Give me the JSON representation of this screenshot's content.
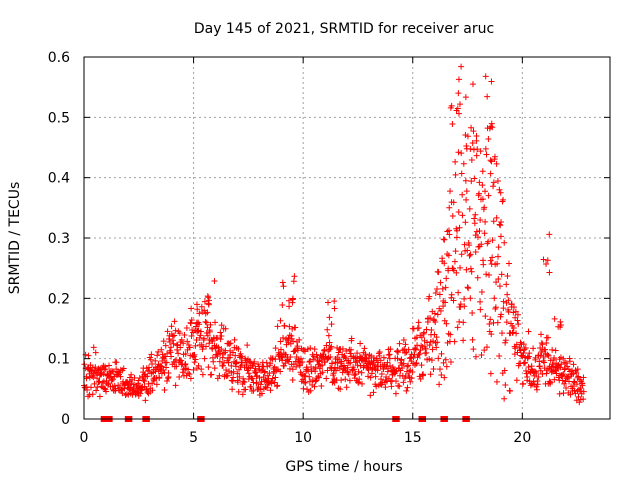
{
  "chart_data": {
    "type": "scatter",
    "title": "Day 145 of 2021, SRMTID for receiver aruc",
    "xlabel": "GPS time / hours",
    "ylabel": "SRMTID / TECUs",
    "xlim": [
      0,
      24
    ],
    "ylim": [
      0,
      0.6
    ],
    "grid": true,
    "x_ticks": [
      0,
      5,
      10,
      15,
      20
    ],
    "x_tick_labels": [
      "0",
      "5",
      "10",
      "15",
      "20"
    ],
    "y_ticks": [
      0,
      0.1,
      0.2,
      0.3,
      0.4,
      0.5,
      0.6
    ],
    "y_tick_labels": [
      "0",
      "0.1",
      "0.2",
      "0.3",
      "0.4",
      "0.5",
      "0.6"
    ],
    "series": [
      {
        "name": "SRMTID",
        "color": "#ff0000",
        "marker": "plus",
        "x_range": [
          0.0,
          22.8
        ],
        "trend": [
          [
            0.0,
            0.07
          ],
          [
            0.5,
            0.08
          ],
          [
            1.0,
            0.06
          ],
          [
            1.5,
            0.07
          ],
          [
            2.0,
            0.05
          ],
          [
            2.5,
            0.05
          ],
          [
            3.0,
            0.07
          ],
          [
            3.5,
            0.09
          ],
          [
            4.0,
            0.11
          ],
          [
            4.5,
            0.1
          ],
          [
            5.0,
            0.11
          ],
          [
            5.5,
            0.14
          ],
          [
            6.0,
            0.12
          ],
          [
            6.5,
            0.1
          ],
          [
            7.0,
            0.09
          ],
          [
            7.5,
            0.08
          ],
          [
            8.0,
            0.07
          ],
          [
            8.5,
            0.07
          ],
          [
            9.0,
            0.12
          ],
          [
            9.5,
            0.12
          ],
          [
            10.0,
            0.08
          ],
          [
            10.5,
            0.08
          ],
          [
            11.0,
            0.1
          ],
          [
            11.5,
            0.09
          ],
          [
            12.0,
            0.09
          ],
          [
            12.5,
            0.09
          ],
          [
            13.0,
            0.08
          ],
          [
            13.5,
            0.08
          ],
          [
            14.0,
            0.08
          ],
          [
            14.5,
            0.09
          ],
          [
            15.0,
            0.1
          ],
          [
            15.5,
            0.12
          ],
          [
            16.0,
            0.15
          ],
          [
            16.5,
            0.2
          ],
          [
            17.0,
            0.25
          ],
          [
            17.5,
            0.3
          ],
          [
            18.0,
            0.32
          ],
          [
            18.5,
            0.28
          ],
          [
            19.0,
            0.22
          ],
          [
            19.5,
            0.16
          ],
          [
            20.0,
            0.1
          ],
          [
            20.5,
            0.09
          ],
          [
            21.0,
            0.1
          ],
          [
            21.5,
            0.08
          ],
          [
            22.0,
            0.07
          ],
          [
            22.5,
            0.06
          ],
          [
            22.8,
            0.05
          ]
        ],
        "peaks": [
          [
            5.0,
            0.2
          ],
          [
            5.8,
            0.245
          ],
          [
            9.2,
            0.235
          ],
          [
            9.6,
            0.245
          ],
          [
            11.3,
            0.2
          ],
          [
            16.5,
            0.38
          ],
          [
            16.9,
            0.52
          ],
          [
            17.2,
            0.59
          ],
          [
            17.5,
            0.55
          ],
          [
            17.8,
            0.5
          ],
          [
            18.2,
            0.4
          ],
          [
            18.5,
            0.6
          ],
          [
            18.6,
            0.52
          ],
          [
            19.0,
            0.4
          ],
          [
            21.1,
            0.31
          ],
          [
            21.6,
            0.19
          ]
        ],
        "zero_values_x": [
          0.9,
          1.1,
          2.0,
          2.8,
          5.3,
          14.2,
          15.4,
          16.4,
          17.4
        ]
      }
    ]
  }
}
